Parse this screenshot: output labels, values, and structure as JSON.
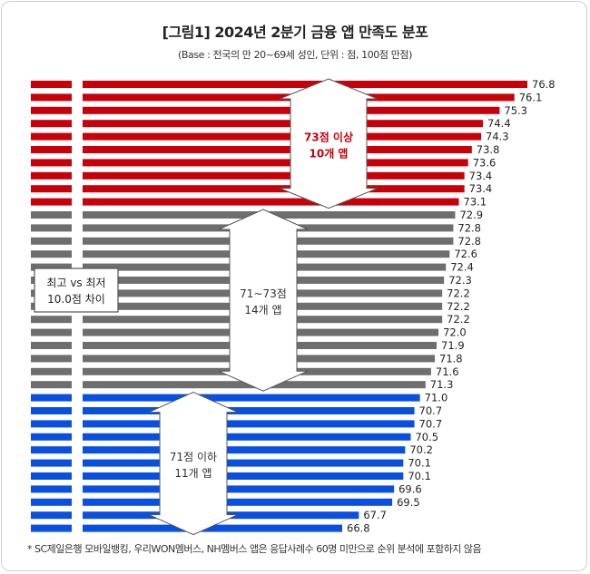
{
  "title": "[그림1] 2024년 2분기 금융 앱 만족도 분포",
  "subtitle": "(Base : 전국의 만 20~69세 성인, 단위 :  점, 100점 만점)",
  "footnote": "* SC제일은행 모바일뱅킹, 우리WON멤버스, NH멤버스 앱은 응답사례수 60명 미만으로 순위 분석에 포함하지 않음",
  "colors": {
    "red": "#c8000a",
    "gray": "#6e6e6e",
    "blue": "#0a50e0"
  },
  "annotations": {
    "high": {
      "line1": "73점 이상",
      "line2": "10개 앱"
    },
    "mid": {
      "line1": "71~73점",
      "line2": "14개 앱"
    },
    "low": {
      "line1": "71점 이하",
      "line2": "11개 앱"
    },
    "range": {
      "line1": "최고 vs 최저",
      "line2": "10.0점 차이"
    }
  },
  "chart_data": {
    "type": "bar",
    "orientation": "horizontal",
    "values": [
      76.8,
      76.1,
      75.3,
      74.4,
      74.3,
      73.8,
      73.6,
      73.4,
      73.4,
      73.1,
      72.9,
      72.8,
      72.8,
      72.6,
      72.4,
      72.3,
      72.2,
      72.2,
      72.2,
      72.0,
      71.9,
      71.8,
      71.6,
      71.3,
      71.0,
      70.7,
      70.7,
      70.5,
      70.2,
      70.1,
      70.1,
      69.6,
      69.5,
      67.7,
      66.8
    ],
    "groups": [
      {
        "key": "high",
        "count": 10,
        "color": "red"
      },
      {
        "key": "mid",
        "count": 14,
        "color": "gray"
      },
      {
        "key": "low",
        "count": 11,
        "color": "blue"
      }
    ],
    "grid": false,
    "legend": "none"
  }
}
